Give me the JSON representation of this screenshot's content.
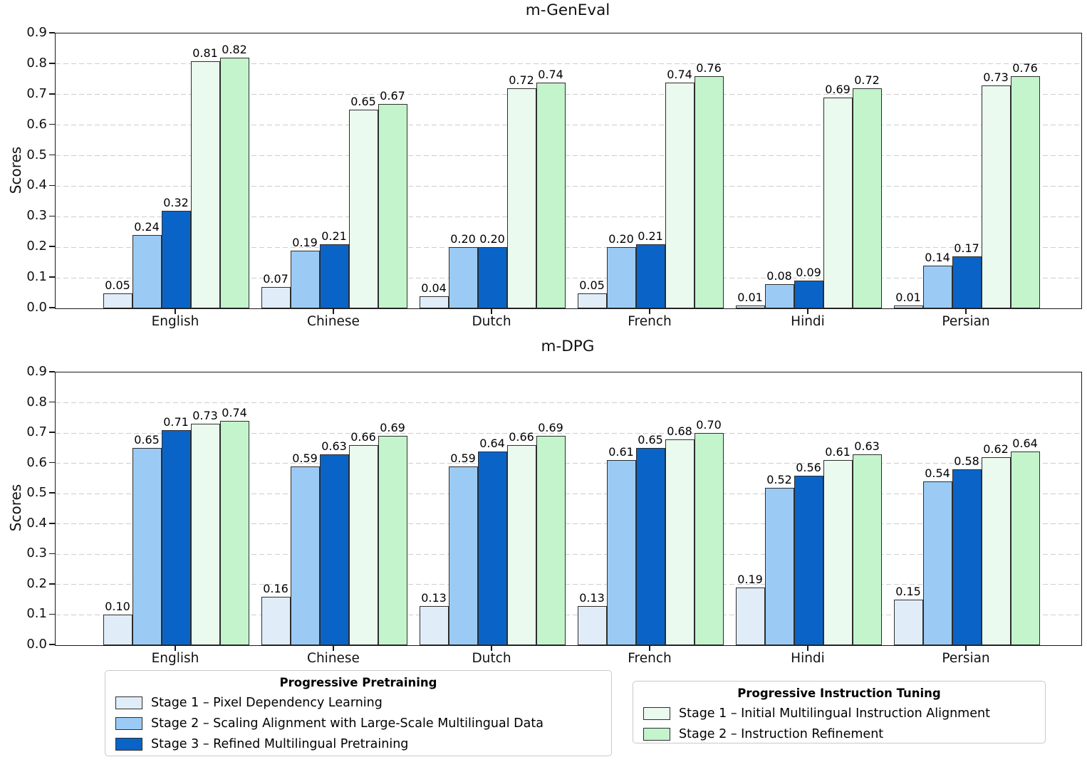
{
  "chart_data": [
    {
      "type": "bar",
      "title": "m-GenEval",
      "xlabel": "",
      "ylabel": "Scores",
      "categories": [
        "English",
        "Chinese",
        "Dutch",
        "French",
        "Hindi",
        "Persian"
      ],
      "ylim": [
        0.0,
        0.9
      ],
      "yticks": [
        0.0,
        0.1,
        0.2,
        0.3,
        0.4,
        0.5,
        0.6,
        0.7,
        0.8,
        0.9
      ],
      "grid": "horizontal-dashed",
      "value_labels": "2-decimals",
      "series": [
        {
          "name": "Stage 1 – Pixel Dependency Learning",
          "color": "#e0edf9",
          "values": [
            0.05,
            0.07,
            0.04,
            0.05,
            0.01,
            0.01
          ]
        },
        {
          "name": "Stage 2 – Scaling Alignment with Large-Scale Multilingual Data",
          "color": "#9bcbf5",
          "values": [
            0.24,
            0.19,
            0.2,
            0.2,
            0.08,
            0.14
          ]
        },
        {
          "name": "Stage 3 – Refined Multilingual Pretraining",
          "color": "#0a64c8",
          "values": [
            0.32,
            0.21,
            0.2,
            0.21,
            0.09,
            0.17
          ]
        },
        {
          "name": "Stage 1 – Initial Multilingual Instruction Alignment",
          "color": "#ebfaef",
          "values": [
            0.81,
            0.65,
            0.72,
            0.74,
            0.69,
            0.73
          ]
        },
        {
          "name": "Stage 2 – Instruction Refinement",
          "color": "#c3f4cc",
          "values": [
            0.82,
            0.67,
            0.74,
            0.76,
            0.72,
            0.76
          ]
        }
      ]
    },
    {
      "type": "bar",
      "title": "m-DPG",
      "xlabel": "",
      "ylabel": "Scores",
      "categories": [
        "English",
        "Chinese",
        "Dutch",
        "French",
        "Hindi",
        "Persian"
      ],
      "ylim": [
        0.0,
        0.9
      ],
      "yticks": [
        0.0,
        0.1,
        0.2,
        0.3,
        0.4,
        0.5,
        0.6,
        0.7,
        0.8,
        0.9
      ],
      "grid": "horizontal-dashed",
      "value_labels": "2-decimals",
      "series": [
        {
          "name": "Stage 1 – Pixel Dependency Learning",
          "color": "#e0edf9",
          "values": [
            0.1,
            0.16,
            0.13,
            0.13,
            0.19,
            0.15
          ]
        },
        {
          "name": "Stage 2 – Scaling Alignment with Large-Scale Multilingual Data",
          "color": "#9bcbf5",
          "values": [
            0.65,
            0.59,
            0.59,
            0.61,
            0.52,
            0.54
          ]
        },
        {
          "name": "Stage 3 – Refined Multilingual Pretraining",
          "color": "#0a64c8",
          "values": [
            0.71,
            0.63,
            0.64,
            0.65,
            0.56,
            0.58
          ]
        },
        {
          "name": "Stage 1 – Initial Multilingual Instruction Alignment",
          "color": "#ebfaef",
          "values": [
            0.73,
            0.66,
            0.66,
            0.68,
            0.61,
            0.62
          ]
        },
        {
          "name": "Stage 2 – Instruction Refinement",
          "color": "#c3f4cc",
          "values": [
            0.74,
            0.69,
            0.69,
            0.7,
            0.63,
            0.64
          ]
        }
      ]
    }
  ],
  "legends": [
    {
      "title": "Progressive Pretraining",
      "entries": [
        {
          "label": "Stage 1 – Pixel Dependency Learning",
          "color": "#e0edf9"
        },
        {
          "label": "Stage 2 – Scaling Alignment with Large-Scale Multilingual Data",
          "color": "#9bcbf5"
        },
        {
          "label": "Stage 3 – Refined Multilingual Pretraining",
          "color": "#0a64c8"
        }
      ]
    },
    {
      "title": "Progressive Instruction Tuning",
      "entries": [
        {
          "label": "Stage 1 – Initial Multilingual Instruction Alignment",
          "color": "#ebfaef"
        },
        {
          "label": "Stage 2 – Instruction Refinement",
          "color": "#c3f4cc"
        }
      ]
    }
  ],
  "style": {
    "bar_edge_color": "#2d2d2d",
    "grid_color": "#cdcdcd",
    "frame_color": "#1a1a1a",
    "background": "#ffffff"
  }
}
